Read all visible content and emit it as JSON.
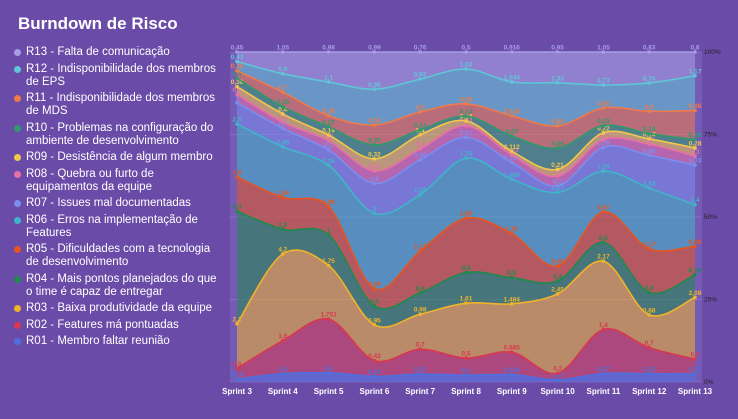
{
  "title": "Burndown de Risco",
  "chart_data": {
    "type": "area",
    "title": "Burndown de Risco",
    "categories": [
      "Sprint 3",
      "Sprint 4",
      "Sprint 5",
      "Sprint 6",
      "Sprint 7",
      "Sprint 8",
      "Sprint 9",
      "Sprint 10",
      "Sprint 11",
      "Sprint 12",
      "Sprint 13"
    ],
    "y_axis_ticks": [
      "100%",
      "75%",
      "50%",
      "25%",
      "0%"
    ],
    "ylim": [
      0,
      100
    ],
    "stacked": true,
    "legend_position": "left",
    "series": [
      {
        "name": "R01 - Membro faltar reunião",
        "color": "#4f6fe0",
        "values": [
          0.14,
          0.4,
          0.3,
          0.15,
          0.22,
          0.2,
          0.228,
          0.07,
          0.27,
          0.22,
          0.27
        ]
      },
      {
        "name": "R02 - Features má pontuadas",
        "color": "#d9384e",
        "values": [
          0.5,
          1.6,
          1.751,
          0.42,
          0.7,
          0.5,
          0.685,
          0.2,
          1.4,
          0.7,
          0.5
        ]
      },
      {
        "name": "R03 - Baixa produtividade da equipe",
        "color": "#f0b32a",
        "values": [
          2.1,
          4.2,
          1.75,
          0.95,
          0.98,
          1.61,
          1.484,
          2.45,
          2.17,
          0.88,
          2.08
        ]
      },
      {
        "name": "R04 - Mais pontos planejados do que o time é capaz de entregar",
        "color": "#1f8a4c",
        "values": [
          5.3,
          1.2,
          1.0,
          0.5,
          0.6,
          0.9,
          0.8,
          0.4,
          0.6,
          0.6,
          0.76
        ]
      },
      {
        "name": "R05 - Dificuldades com a tecnologia de desenvolvimento",
        "color": "#e8551e",
        "values": [
          1.6,
          1.54,
          0.92,
          0.46,
          1.17,
          1.59,
          1.35,
          0.46,
          0.97,
          1.17,
          0.96
        ]
      },
      {
        "name": "R06 - Erros na implementação de Features",
        "color": "#3fb6c8",
        "values": [
          2.5,
          2.45,
          1.35,
          2.0,
          1.58,
          1.76,
          1.666,
          2.27,
          1.29,
          1.63,
          1.4
        ]
      },
      {
        "name": "R07 - Issues mal documentadas",
        "color": "#7a8ef0",
        "values": [
          1.0,
          0.9,
          0.5,
          0.8,
          0.98,
          0.61,
          0.516,
          0.2,
          0.76,
          0.88,
          1.33
        ]
      },
      {
        "name": "R08 - Quebra ou furto de equipamentos da equipe",
        "color": "#e96fa7",
        "values": [
          0.4,
          0.3,
          0.3,
          0.33,
          0.3,
          0.34,
          0.23,
          0.3,
          0.24,
          0.3,
          0.3
        ]
      },
      {
        "name": "R09 - Desistência de algum membro",
        "color": "#f2c74a",
        "values": [
          0.36,
          0.4,
          0.19,
          0.32,
          0.4,
          0.14,
          0.112,
          0.21,
          0.22,
          0.14,
          0.28
        ]
      },
      {
        "name": "R10 - Problemas na configuração do ambiente de desenvolvimento",
        "color": "#2f9a6b",
        "values": [
          0.4,
          0.35,
          0.27,
          0.37,
          0.14,
          0.14,
          0.47,
          0.66,
          0.23,
          0.14,
          0.28
        ]
      },
      {
        "name": "R11 - Indisponibilidade dos membros de MDS",
        "color": "#f07a48",
        "values": [
          0.35,
          0.7,
          0.36,
          0.53,
          0.5,
          0.36,
          0.616,
          0.68,
          0.56,
          0.6,
          0.98
        ]
      },
      {
        "name": "R12 - Indisponibilidade dos membros de EPS",
        "color": "#5ec6d6",
        "values": [
          0.43,
          0.9,
          1.1,
          0.95,
          0.92,
          1.02,
          1.044,
          1.33,
          0.73,
          0.76,
          1.17
        ]
      },
      {
        "name": "R13 - Falta de comunicação",
        "color": "#a79ee6",
        "values": [
          0.45,
          1.05,
          0.98,
          0.99,
          0.76,
          0.5,
          0.916,
          0.95,
          1.05,
          0.83,
          0.8
        ]
      }
    ]
  }
}
